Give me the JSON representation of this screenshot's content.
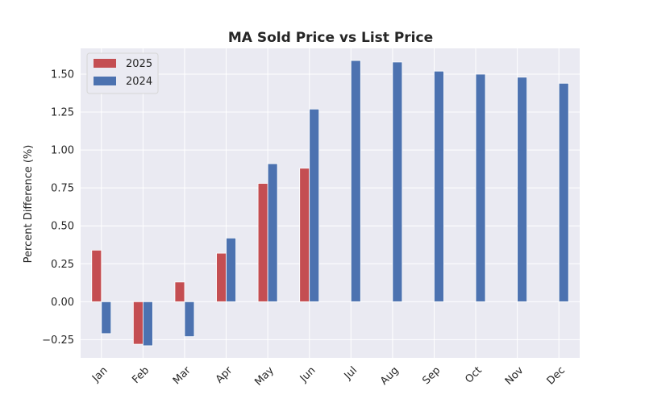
{
  "chart_data": {
    "type": "bar",
    "title": "MA Sold Price vs List Price",
    "xlabel": "",
    "ylabel": "Percent Difference (%)",
    "categories": [
      "Jan",
      "Feb",
      "Mar",
      "Apr",
      "May",
      "Jun",
      "Jul",
      "Aug",
      "Sep",
      "Oct",
      "Nov",
      "Dec"
    ],
    "series": [
      {
        "name": "2025",
        "color": "#c44e52",
        "values": [
          0.34,
          -0.28,
          0.13,
          0.32,
          0.78,
          0.88,
          null,
          null,
          null,
          null,
          null,
          null
        ]
      },
      {
        "name": "2024",
        "color": "#4c72b0",
        "values": [
          -0.21,
          -0.29,
          -0.23,
          0.42,
          0.91,
          1.27,
          1.59,
          1.58,
          1.52,
          1.5,
          1.48,
          1.44
        ]
      }
    ],
    "yticks": [
      "−0.25",
      "0.00",
      "0.25",
      "0.50",
      "0.75",
      "1.00",
      "1.25",
      "1.50"
    ],
    "ylim": [
      -0.37,
      1.67
    ],
    "grid": true,
    "legend_position": "top-left",
    "background_color": "#eaeaf2",
    "grid_color": "#ffffff"
  }
}
